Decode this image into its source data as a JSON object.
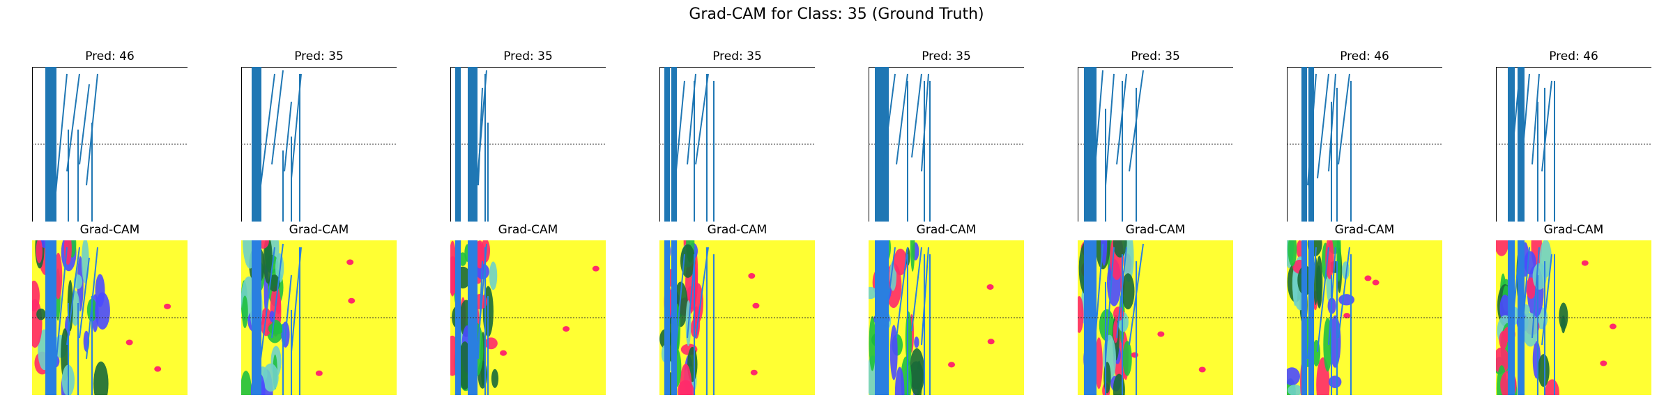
{
  "figure": {
    "suptitle": "Grad-CAM for Class: 35 (Ground Truth)"
  },
  "chart_data": {
    "type": "line",
    "panel_count": 8,
    "top_row_titles": [
      "Pred: 46",
      "Pred: 35",
      "Pred: 35",
      "Pred: 35",
      "Pred: 35",
      "Pred: 35",
      "Pred: 46",
      "Pred: 46"
    ],
    "bottom_row_titles": [
      "Grad-CAM",
      "Grad-CAM",
      "Grad-CAM",
      "Grad-CAM",
      "Grad-CAM",
      "Grad-CAM",
      "Grad-CAM",
      "Grad-CAM"
    ],
    "axes": "off",
    "reference_line": "dotted horizontal line at mid-height",
    "colors": {
      "signal": "#1f77b4",
      "overlay_signal": "#2a7fe0",
      "heatmap_base": "#ffff33",
      "heatmap_hot": "#ff2a6a",
      "heatmap_mid": "#20c040",
      "heatmap_cool": "#4a4aff",
      "heatmap_dark": "#1a6a3a"
    }
  }
}
